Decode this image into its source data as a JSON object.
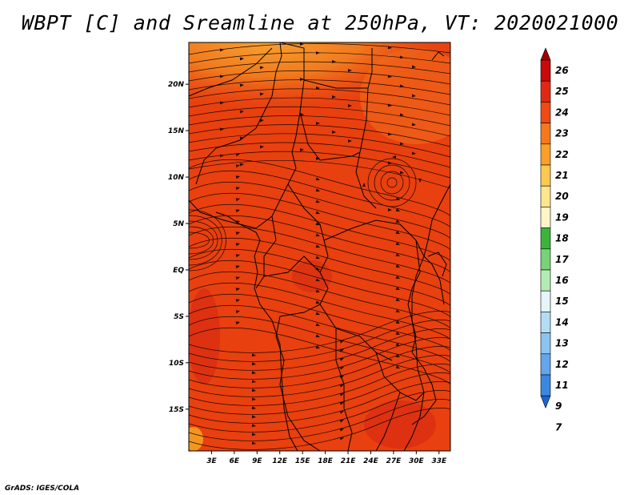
{
  "title": "WBPT [C] and Sreamline at 250hPa, VT: 2020021000",
  "credit": "GrADS: IGES/COLA",
  "map": {
    "lat_ticks": [
      "20N",
      "15N",
      "10N",
      "5N",
      "EQ",
      "5S",
      "10S",
      "15S"
    ],
    "lat_values": [
      20,
      15,
      10,
      5,
      0,
      -5,
      -10,
      -15
    ],
    "lon_ticks": [
      "3E",
      "6E",
      "9E",
      "12E",
      "15E",
      "18E",
      "21E",
      "24E",
      "27E",
      "30E",
      "33E"
    ],
    "lon_values": [
      3,
      6,
      9,
      12,
      15,
      18,
      21,
      24,
      27,
      30,
      33
    ],
    "lat_range": [
      -19.5,
      24.5
    ],
    "lon_range": [
      0,
      34.5
    ],
    "field_colors": {
      "base": "#e8400f",
      "north_band": "#f5781a",
      "hot_spots": "#d62814"
    }
  },
  "colorbar": {
    "labels": [
      "26",
      "25",
      "24",
      "23",
      "22",
      "21",
      "20",
      "19",
      "18",
      "17",
      "16",
      "15",
      "14",
      "13",
      "12",
      "11",
      "9",
      "7"
    ],
    "colors": [
      "#a00000",
      "#c80a0a",
      "#e12814",
      "#f04a14",
      "#f5781e",
      "#faa028",
      "#fcc850",
      "#fde68c",
      "#fff5c8",
      "#3cb43c",
      "#78d278",
      "#b4ebb4",
      "#e6f5fa",
      "#b4dcf5",
      "#8cc3f0",
      "#64a5eb",
      "#3c87e1",
      "#1e64d2"
    ]
  }
}
